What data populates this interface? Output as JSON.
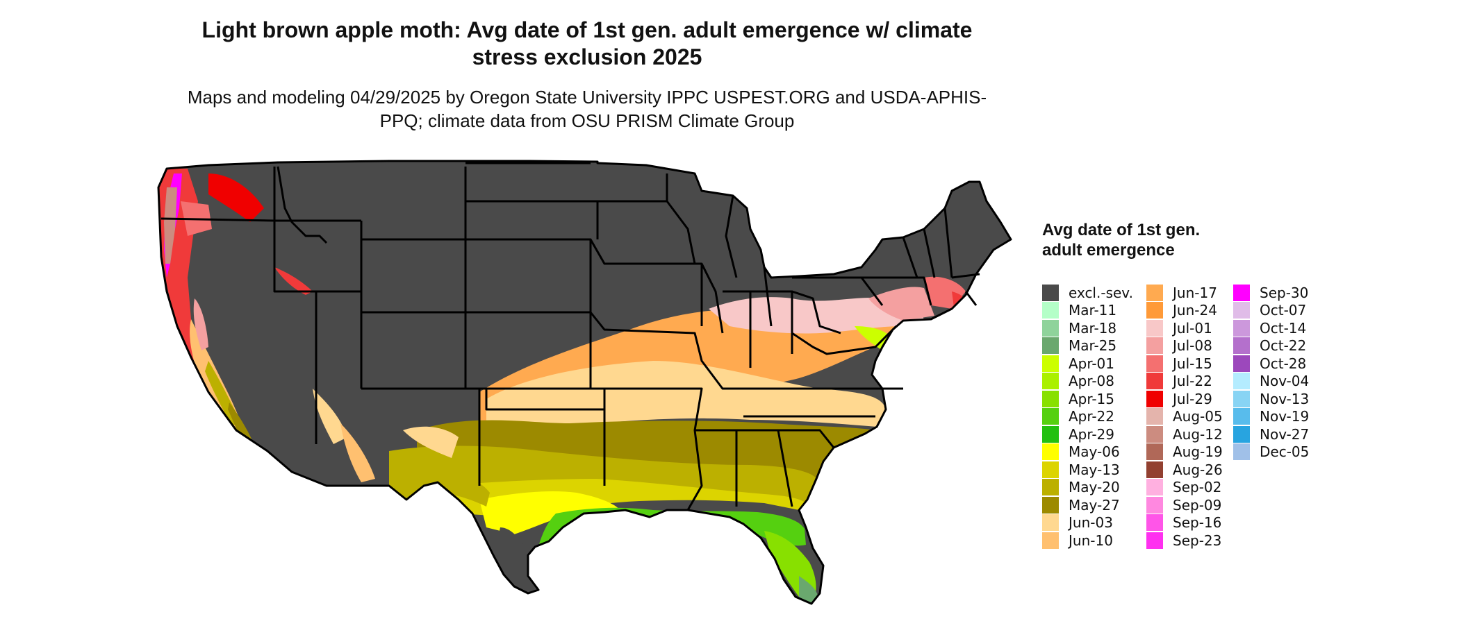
{
  "title": "Light brown apple moth: Avg date of 1st gen. adult emergence w/ climate stress exclusion 2025",
  "subtitle": "Maps and modeling 04/29/2025 by Oregon State University IPPC USPEST.ORG and USDA-APHIS-PPQ; climate data from OSU PRISM Climate Group",
  "legend": {
    "title": "Avg date of 1st gen. adult emergence",
    "items": [
      {
        "label": "excl.-sev.",
        "color": "#4a4a4a"
      },
      {
        "label": "Mar-11",
        "color": "#b4ffc8"
      },
      {
        "label": "Mar-18",
        "color": "#8fd39b"
      },
      {
        "label": "Mar-25",
        "color": "#6aa86e"
      },
      {
        "label": "Apr-01",
        "color": "#ccff00"
      },
      {
        "label": "Apr-08",
        "color": "#aaf000"
      },
      {
        "label": "Apr-15",
        "color": "#88e000"
      },
      {
        "label": "Apr-22",
        "color": "#55d010"
      },
      {
        "label": "Apr-29",
        "color": "#22c010"
      },
      {
        "label": "May-06",
        "color": "#ffff00"
      },
      {
        "label": "May-13",
        "color": "#dcd400"
      },
      {
        "label": "May-20",
        "color": "#bcb000"
      },
      {
        "label": "May-27",
        "color": "#9c8a00"
      },
      {
        "label": "Jun-03",
        "color": "#ffd890"
      },
      {
        "label": "Jun-10",
        "color": "#ffc070"
      },
      {
        "label": "Jun-17",
        "color": "#ffaa50"
      },
      {
        "label": "Jun-24",
        "color": "#ff9a38"
      },
      {
        "label": "Jul-01",
        "color": "#f8c8c8"
      },
      {
        "label": "Jul-08",
        "color": "#f4a0a0"
      },
      {
        "label": "Jul-15",
        "color": "#f47070"
      },
      {
        "label": "Jul-22",
        "color": "#f03a3a"
      },
      {
        "label": "Jul-29",
        "color": "#f00000"
      },
      {
        "label": "Aug-05",
        "color": "#e4b4ac"
      },
      {
        "label": "Aug-12",
        "color": "#cc8c80"
      },
      {
        "label": "Aug-19",
        "color": "#b06858"
      },
      {
        "label": "Aug-26",
        "color": "#924030"
      },
      {
        "label": "Sep-02",
        "color": "#ffb0e0"
      },
      {
        "label": "Sep-09",
        "color": "#ff88e0"
      },
      {
        "label": "Sep-16",
        "color": "#ff55e8"
      },
      {
        "label": "Sep-23",
        "color": "#ff30f0"
      },
      {
        "label": "Sep-30",
        "color": "#ff00ff"
      },
      {
        "label": "Oct-07",
        "color": "#e0bce8"
      },
      {
        "label": "Oct-14",
        "color": "#cc98dc"
      },
      {
        "label": "Oct-22",
        "color": "#b470cc"
      },
      {
        "label": "Oct-28",
        "color": "#9c48bc"
      },
      {
        "label": "Nov-04",
        "color": "#b4ecff"
      },
      {
        "label": "Nov-13",
        "color": "#88d4f4"
      },
      {
        "label": "Nov-19",
        "color": "#58bcec"
      },
      {
        "label": "Nov-27",
        "color": "#28a4e0"
      },
      {
        "label": "Dec-05",
        "color": "#a0c0e8"
      }
    ]
  }
}
